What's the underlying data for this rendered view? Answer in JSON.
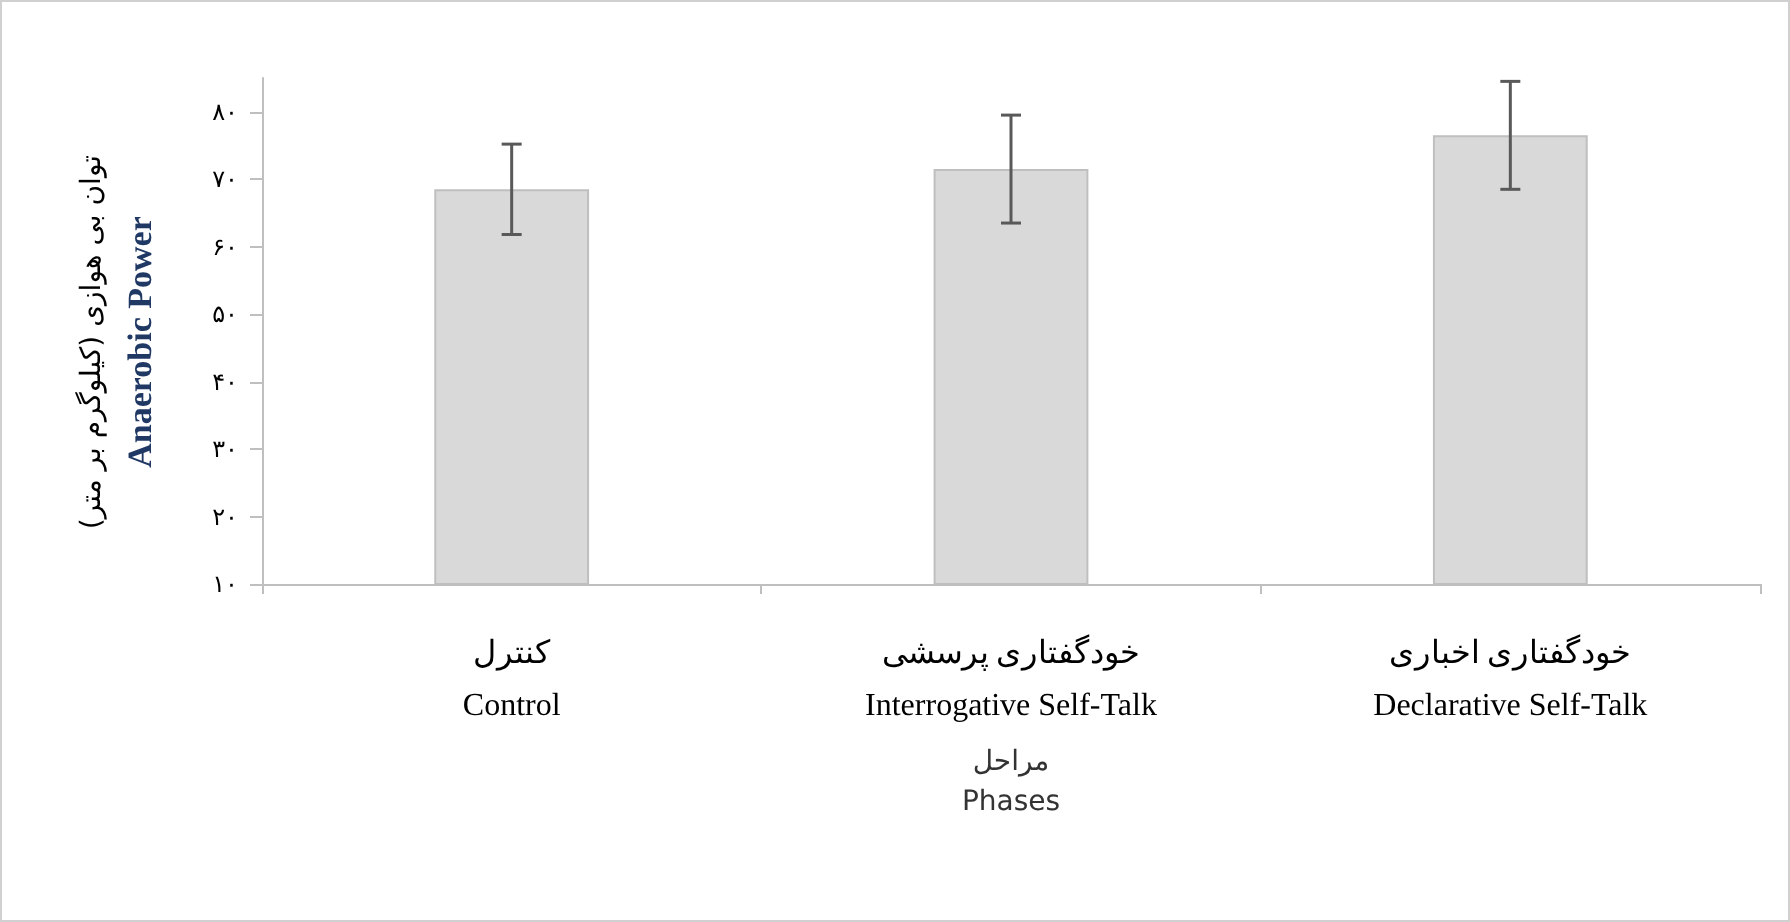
{
  "chart_data": {
    "type": "bar",
    "categories": [
      "کنترل\nControl",
      "خودگفتاری پرسشی\nInterrogative Self-Talk",
      "خودگفتاری اخباری\nDeclarative Self-Talk"
    ],
    "values": [
      68.5,
      71.5,
      76.5
    ],
    "errors": [
      6.7,
      8,
      8
    ],
    "color": "#d9d9d9",
    "xlabel": "مراحل\nPhases",
    "ylabel": "توان بی هوازی (کیلوگرم بر متر)\nAnaerobic Power",
    "ylim": [
      10,
      85
    ],
    "yticks": [
      {
        "value": 10,
        "label": "۱۰"
      },
      {
        "value": 20,
        "label": "۲۰"
      },
      {
        "value": 30,
        "label": "۳۰"
      },
      {
        "value": 40,
        "label": "۴۰"
      },
      {
        "value": 50,
        "label": "۵۰"
      },
      {
        "value": 60,
        "label": "۶۰"
      },
      {
        "value": 70,
        "label": "۷۰"
      },
      {
        "value": 80,
        "label": "۸۰"
      }
    ],
    "grid": false
  }
}
